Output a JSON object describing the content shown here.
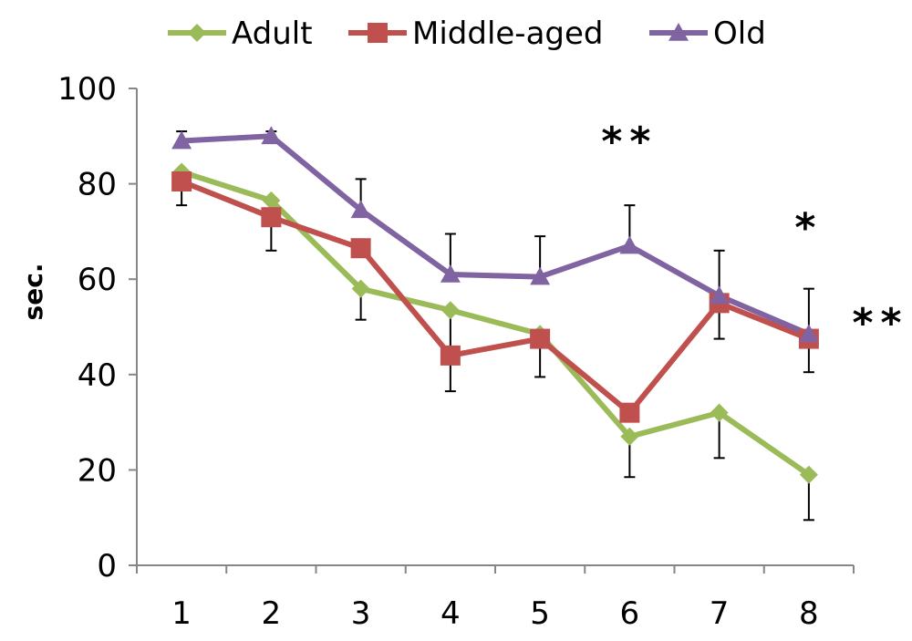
{
  "chart_data": {
    "type": "line",
    "x": [
      1,
      2,
      3,
      4,
      5,
      6,
      7,
      8
    ],
    "ylabel": "sec.",
    "xlabel": "",
    "ylim": [
      0,
      100
    ],
    "yticks": [
      0,
      20,
      40,
      60,
      80,
      100
    ],
    "legend_position": "top",
    "grid": false,
    "series": [
      {
        "name": "Adult",
        "color": "#9BBB59",
        "marker": "diamond",
        "values": [
          82.5,
          76.5,
          58,
          53.5,
          48.5,
          27,
          32,
          19
        ],
        "error_bars": [
          null,
          null,
          6.5,
          9.5,
          9,
          8.5,
          9.5,
          9.5
        ],
        "error_direction": "down"
      },
      {
        "name": "Middle-aged",
        "color": "#C0504D",
        "marker": "square",
        "values": [
          80.5,
          73,
          66.5,
          44,
          47.5,
          32,
          55,
          47.5
        ],
        "error_bars": [
          5,
          7,
          null,
          7.5,
          null,
          null,
          7.5,
          7
        ],
        "error_direction": "down"
      },
      {
        "name": "Old",
        "color": "#8064A2",
        "marker": "triangle",
        "values": [
          89,
          90,
          74.5,
          61,
          60.5,
          67,
          56.5,
          48.5
        ],
        "error_bars": [
          2,
          1,
          6.5,
          8.5,
          8.5,
          8.5,
          9.5,
          9.5
        ],
        "error_direction": "up"
      }
    ],
    "annotations": [
      {
        "text": "**",
        "x": 6,
        "y": 86
      },
      {
        "text": "*",
        "x": 8,
        "y": 68
      },
      {
        "text": "**",
        "x": 8.8,
        "y": 48
      }
    ]
  }
}
